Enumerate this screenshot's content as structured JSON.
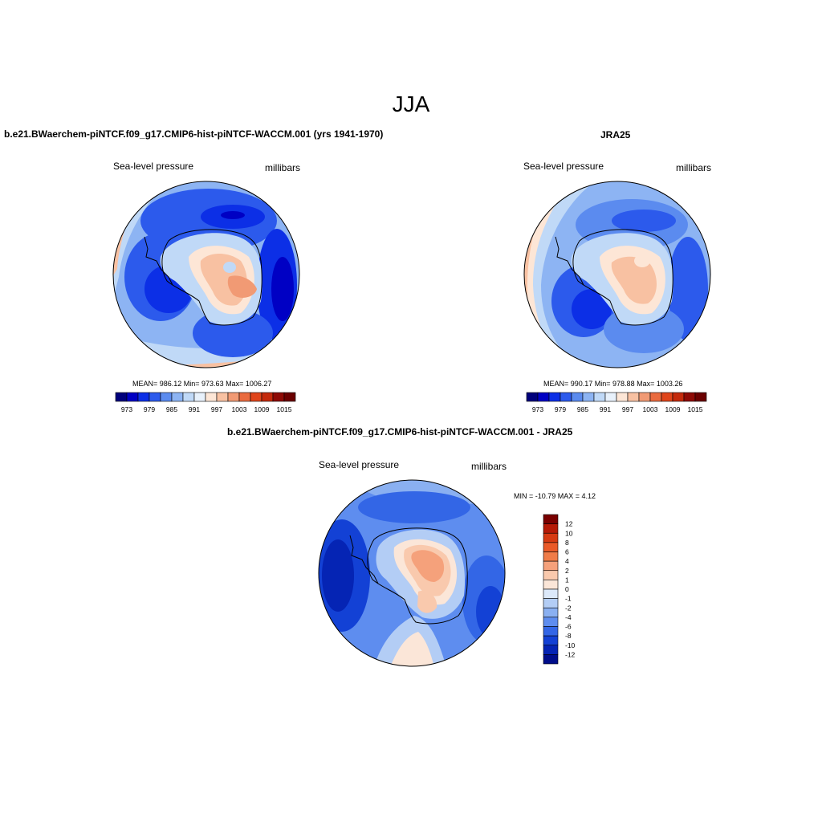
{
  "title": "JJA",
  "colors": {
    "colormap": [
      "#00007c",
      "#0000c4",
      "#0c2fe6",
      "#2c5aec",
      "#5b8bef",
      "#8db4f3",
      "#c0d9f7",
      "#e8f1fb",
      "#fde6d6",
      "#f8c1a2",
      "#f19a74",
      "#ea6b3f",
      "#e0451b",
      "#c42a0c",
      "#8e0a05",
      "#6b0000"
    ],
    "ocean_low": "#1b4fe0",
    "ocean_mid": "#6e9df1",
    "land_high": "#f19a74"
  },
  "panels": [
    {
      "title": "b.e21.BWaerchem-piNTCF.f09_g17.CMIP6-hist-piNTCF-WACCM.001 (yrs 1941-1970)",
      "left_label": "Sea-level pressure",
      "right_label": "millibars",
      "stats": "MEAN= 986.12  Min= 973.63  Max= 1006.27",
      "colorbar_labels": [
        "973",
        "979",
        "985",
        "991",
        "997",
        "1003",
        "1009",
        "1015"
      ]
    },
    {
      "title": "JRA25",
      "left_label": "Sea-level pressure",
      "right_label": "millibars",
      "stats": "MEAN= 990.17  Min= 978.88  Max= 1003.26",
      "colorbar_labels": [
        "973",
        "979",
        "985",
        "991",
        "997",
        "1003",
        "1009",
        "1015"
      ]
    },
    {
      "title": "b.e21.BWaerchem-piNTCF.f09_g17.CMIP6-hist-piNTCF-WACCM.001 - JRA25",
      "left_label": "Sea-level pressure",
      "right_label": "millibars",
      "stats": "MIN = -10.79 MAX =   4.12",
      "colorbar_labels": [
        "12",
        "10",
        "8",
        "6",
        "4",
        "2",
        "1",
        "0",
        "-1",
        "-2",
        "-4",
        "-6",
        "-8",
        "-10",
        "-12"
      ],
      "colorbar_colors": [
        "#7a0000",
        "#b51a07",
        "#d63a12",
        "#ea5a28",
        "#f07c48",
        "#f5a17b",
        "#f9c9ad",
        "#fbe6d8",
        "#dce9fa",
        "#b3cdf5",
        "#8ab0f1",
        "#5e8def",
        "#3366e6",
        "#1341d5",
        "#0524b4",
        "#000d8a"
      ]
    }
  ]
}
